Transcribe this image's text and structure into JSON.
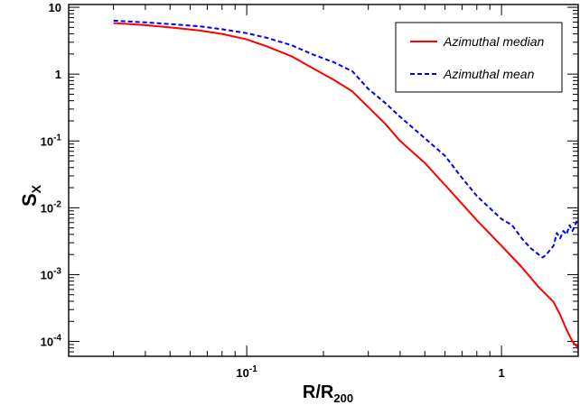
{
  "chart_data": {
    "type": "line",
    "xscale": "log",
    "yscale": "log",
    "xlim": [
      0.02,
      2.0
    ],
    "ylim": [
      6e-05,
      11
    ],
    "xlabel": "R/R",
    "xlabel_sub": "200",
    "ylabel": "S",
    "ylabel_sub": "X",
    "xticks": [
      {
        "value": 0.1,
        "base": "10",
        "exp": "-1"
      },
      {
        "value": 1,
        "base": "1",
        "exp": ""
      }
    ],
    "yticks": [
      {
        "value": 10,
        "base": "10",
        "exp": ""
      },
      {
        "value": 1,
        "base": "1",
        "exp": ""
      },
      {
        "value": 0.1,
        "base": "10",
        "exp": "-1"
      },
      {
        "value": 0.01,
        "base": "10",
        "exp": "-2"
      },
      {
        "value": 0.001,
        "base": "10",
        "exp": "-3"
      },
      {
        "value": 0.0001,
        "base": "10",
        "exp": "-4"
      }
    ],
    "legend_position": "top-right",
    "grid": false,
    "series": [
      {
        "name": "Azimuthal median",
        "color": "#ff0000",
        "dash": "solid",
        "x": [
          0.03,
          0.04,
          0.05,
          0.065,
          0.08,
          0.1,
          0.12,
          0.15,
          0.18,
          0.22,
          0.26,
          0.3,
          0.35,
          0.4,
          0.5,
          0.6,
          0.7,
          0.8,
          1.0,
          1.2,
          1.4,
          1.5,
          1.6,
          1.7,
          1.8,
          1.9,
          2.0
        ],
        "y": [
          5.8,
          5.4,
          5.0,
          4.5,
          4.0,
          3.3,
          2.6,
          1.85,
          1.25,
          0.82,
          0.55,
          0.32,
          0.18,
          0.1,
          0.047,
          0.022,
          0.0115,
          0.0065,
          0.0027,
          0.0013,
          0.00065,
          0.0005,
          0.00039,
          0.00025,
          0.00015,
          0.0001,
          8e-05
        ]
      },
      {
        "name": "Azimuthal mean",
        "color": "#0000ff",
        "dash": "dashed",
        "x": [
          0.03,
          0.04,
          0.05,
          0.065,
          0.08,
          0.1,
          0.12,
          0.15,
          0.18,
          0.22,
          0.26,
          0.3,
          0.35,
          0.4,
          0.5,
          0.6,
          0.7,
          0.8,
          1.0,
          1.1,
          1.2,
          1.3,
          1.4,
          1.45,
          1.5,
          1.6,
          1.65,
          1.7,
          1.75,
          1.8,
          1.85,
          1.9,
          2.0
        ],
        "y": [
          6.3,
          5.95,
          5.6,
          5.2,
          4.7,
          4.1,
          3.5,
          2.7,
          2.0,
          1.5,
          1.1,
          0.6,
          0.37,
          0.23,
          0.11,
          0.06,
          0.028,
          0.015,
          0.0068,
          0.0055,
          0.0035,
          0.0025,
          0.002,
          0.0018,
          0.002,
          0.0027,
          0.0042,
          0.0035,
          0.0045,
          0.004,
          0.0055,
          0.0045,
          0.007
        ]
      }
    ]
  }
}
